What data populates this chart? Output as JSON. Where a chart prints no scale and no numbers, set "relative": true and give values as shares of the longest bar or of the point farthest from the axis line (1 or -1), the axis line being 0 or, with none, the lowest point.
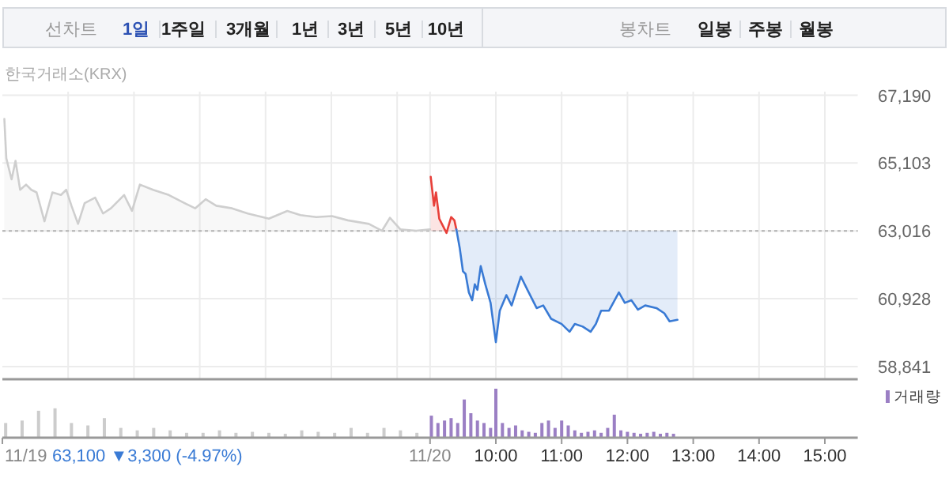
{
  "chart_data": [
    {
      "type": "line",
      "annotations": [
        "선차트",
        "1일",
        "1주일",
        "3개월",
        "1년",
        "3년",
        "5년",
        "10년",
        "봉차트",
        "일봉",
        "주봉",
        "월봉",
        "한국거래소(KRX)"
      ],
      "xlim": [
        2.5,
        15.5
      ],
      "ylim": [
        58450,
        67300
      ],
      "xticks": [
        {
          "value": 3.5,
          "label": null
        },
        {
          "value": 4.5,
          "label": null
        },
        {
          "value": 5.5,
          "label": null
        },
        {
          "value": 6.5,
          "label": null
        },
        {
          "value": 7.5,
          "label": null
        },
        {
          "value": 8.5,
          "label": null
        },
        {
          "value": 9,
          "label": null
        },
        {
          "value": 10,
          "label": null
        },
        {
          "value": 11,
          "label": null
        },
        {
          "value": 12,
          "label": null
        },
        {
          "value": 13,
          "label": null
        },
        {
          "value": 14,
          "label": null
        },
        {
          "value": 15,
          "label": null
        }
      ],
      "yticks": [
        {
          "value": 58841,
          "label": "58,841"
        },
        {
          "value": 60928,
          "label": "60,928"
        },
        {
          "value": 63016,
          "label": "63,016"
        },
        {
          "value": 65103,
          "label": "65,103"
        },
        {
          "value": 67190,
          "label": "67,190"
        }
      ],
      "tick_labels": "y",
      "grid": true,
      "ref_lines": [
        {
          "axis": "y",
          "value": 63016,
          "color": "#b0b0b0",
          "line_style": "dotted"
        }
      ],
      "series": [
        {
          "type": "line",
          "color": "#cfcfcf",
          "x": [
            2.53,
            2.56,
            2.64,
            2.7,
            2.77,
            2.86,
            2.94,
            3.02,
            3.14,
            3.26,
            3.39,
            3.47,
            3.55,
            3.65,
            3.75,
            3.91,
            4.03,
            4.15,
            4.35,
            4.47,
            4.59,
            4.79,
            5.03,
            5.27,
            5.43,
            5.59,
            5.75,
            5.99,
            6.23,
            6.55,
            6.83,
            7.03,
            7.27,
            7.51,
            7.75,
            8.07,
            8.27,
            8.39,
            8.55,
            8.79,
            9.0
          ],
          "values": [
            66460,
            65250,
            64600,
            65170,
            64280,
            64440,
            64280,
            64200,
            63310,
            64200,
            64120,
            64280,
            63790,
            63230,
            63870,
            64040,
            63550,
            63710,
            64120,
            63630,
            64440,
            64280,
            64120,
            63870,
            63710,
            63990,
            63790,
            63710,
            63550,
            63390,
            63630,
            63500,
            63440,
            63470,
            63340,
            63230,
            63020,
            63420,
            63060,
            63020,
            63060
          ]
        },
        {
          "type": "line",
          "color": "#e8403a",
          "x": [
            9.01,
            9.06,
            9.09,
            9.14,
            9.2,
            9.25,
            9.32,
            9.37,
            9.4
          ],
          "values": [
            64680,
            63790,
            64200,
            63390,
            63150,
            62950,
            63440,
            63340,
            63060
          ]
        },
        {
          "type": "line",
          "color": "#3a7bd5",
          "x": [
            9.4,
            9.45,
            9.5,
            9.54,
            9.59,
            9.64,
            9.68,
            9.72,
            9.77,
            9.84,
            9.92,
            10.0,
            10.06,
            10.16,
            10.24,
            10.38,
            10.48,
            10.62,
            10.72,
            10.84,
            11.0,
            11.12,
            11.2,
            11.32,
            11.44,
            11.52,
            11.6,
            11.72,
            11.87,
            11.96,
            12.06,
            12.16,
            12.27,
            12.44,
            12.56,
            12.64,
            12.76
          ],
          "values": [
            63060,
            62500,
            61770,
            61690,
            61120,
            60880,
            61370,
            61200,
            61930,
            61370,
            60800,
            59590,
            60560,
            61040,
            60720,
            61610,
            61200,
            60640,
            60720,
            60310,
            60150,
            59910,
            60150,
            60070,
            59910,
            60150,
            60560,
            60560,
            61120,
            60800,
            60880,
            60590,
            60720,
            60640,
            60480,
            60230,
            60280
          ]
        }
      ]
    },
    {
      "type": "bar",
      "relative": true,
      "xlim": [
        2.5,
        15.5
      ],
      "tick_labels": "x",
      "legend": "top right",
      "xticks": [
        {
          "value": 2.5,
          "label": "11/19"
        },
        {
          "value": 9,
          "label": "11/20"
        },
        {
          "value": 10,
          "label": "10:00"
        },
        {
          "value": 11,
          "label": "11:00"
        },
        {
          "value": 12,
          "label": "12:00"
        },
        {
          "value": 13,
          "label": "13:00"
        },
        {
          "value": 14,
          "label": "14:00"
        },
        {
          "value": 15,
          "label": "15:00"
        }
      ],
      "annotations": [
        "63,100 ▼3,300 (-4.97%)"
      ],
      "series": [
        {
          "color": "#cccccc",
          "x": [
            2.55,
            2.8,
            3.05,
            3.3,
            3.55,
            3.8,
            4.05,
            4.3,
            4.55,
            4.8,
            5.05,
            5.3,
            5.55,
            5.8,
            6.05,
            6.3,
            6.55,
            6.8,
            7.05,
            7.3,
            7.55,
            7.8,
            8.05,
            8.3,
            8.55,
            8.8
          ],
          "values": [
            0.3,
            0.35,
            0.55,
            0.6,
            0.3,
            0.25,
            0.4,
            0.2,
            0.15,
            0.2,
            0.15,
            0.1,
            0.1,
            0.15,
            0.1,
            0.12,
            0.1,
            0.08,
            0.15,
            0.12,
            0.1,
            0.2,
            0.1,
            0.2,
            0.15,
            0.1
          ]
        },
        {
          "name": "거래량",
          "color": "#9b7fc4",
          "x": [
            9.02,
            9.12,
            9.22,
            9.32,
            9.42,
            9.52,
            9.62,
            9.72,
            9.82,
            9.92,
            10.0,
            10.1,
            10.2,
            10.3,
            10.4,
            10.5,
            10.6,
            10.7,
            10.8,
            10.9,
            11.0,
            11.1,
            11.2,
            11.3,
            11.4,
            11.5,
            11.6,
            11.7,
            11.8,
            11.9,
            12.0,
            12.1,
            12.2,
            12.3,
            12.4,
            12.5,
            12.6,
            12.7
          ],
          "values": [
            0.45,
            0.3,
            0.35,
            0.4,
            0.3,
            0.78,
            0.5,
            0.35,
            0.3,
            0.2,
            1.0,
            0.3,
            0.2,
            0.25,
            0.15,
            0.12,
            0.1,
            0.3,
            0.35,
            0.2,
            0.35,
            0.25,
            0.15,
            0.1,
            0.12,
            0.15,
            0.1,
            0.2,
            0.47,
            0.15,
            0.12,
            0.1,
            0.08,
            0.1,
            0.12,
            0.08,
            0.1,
            0.08
          ]
        }
      ]
    }
  ]
}
